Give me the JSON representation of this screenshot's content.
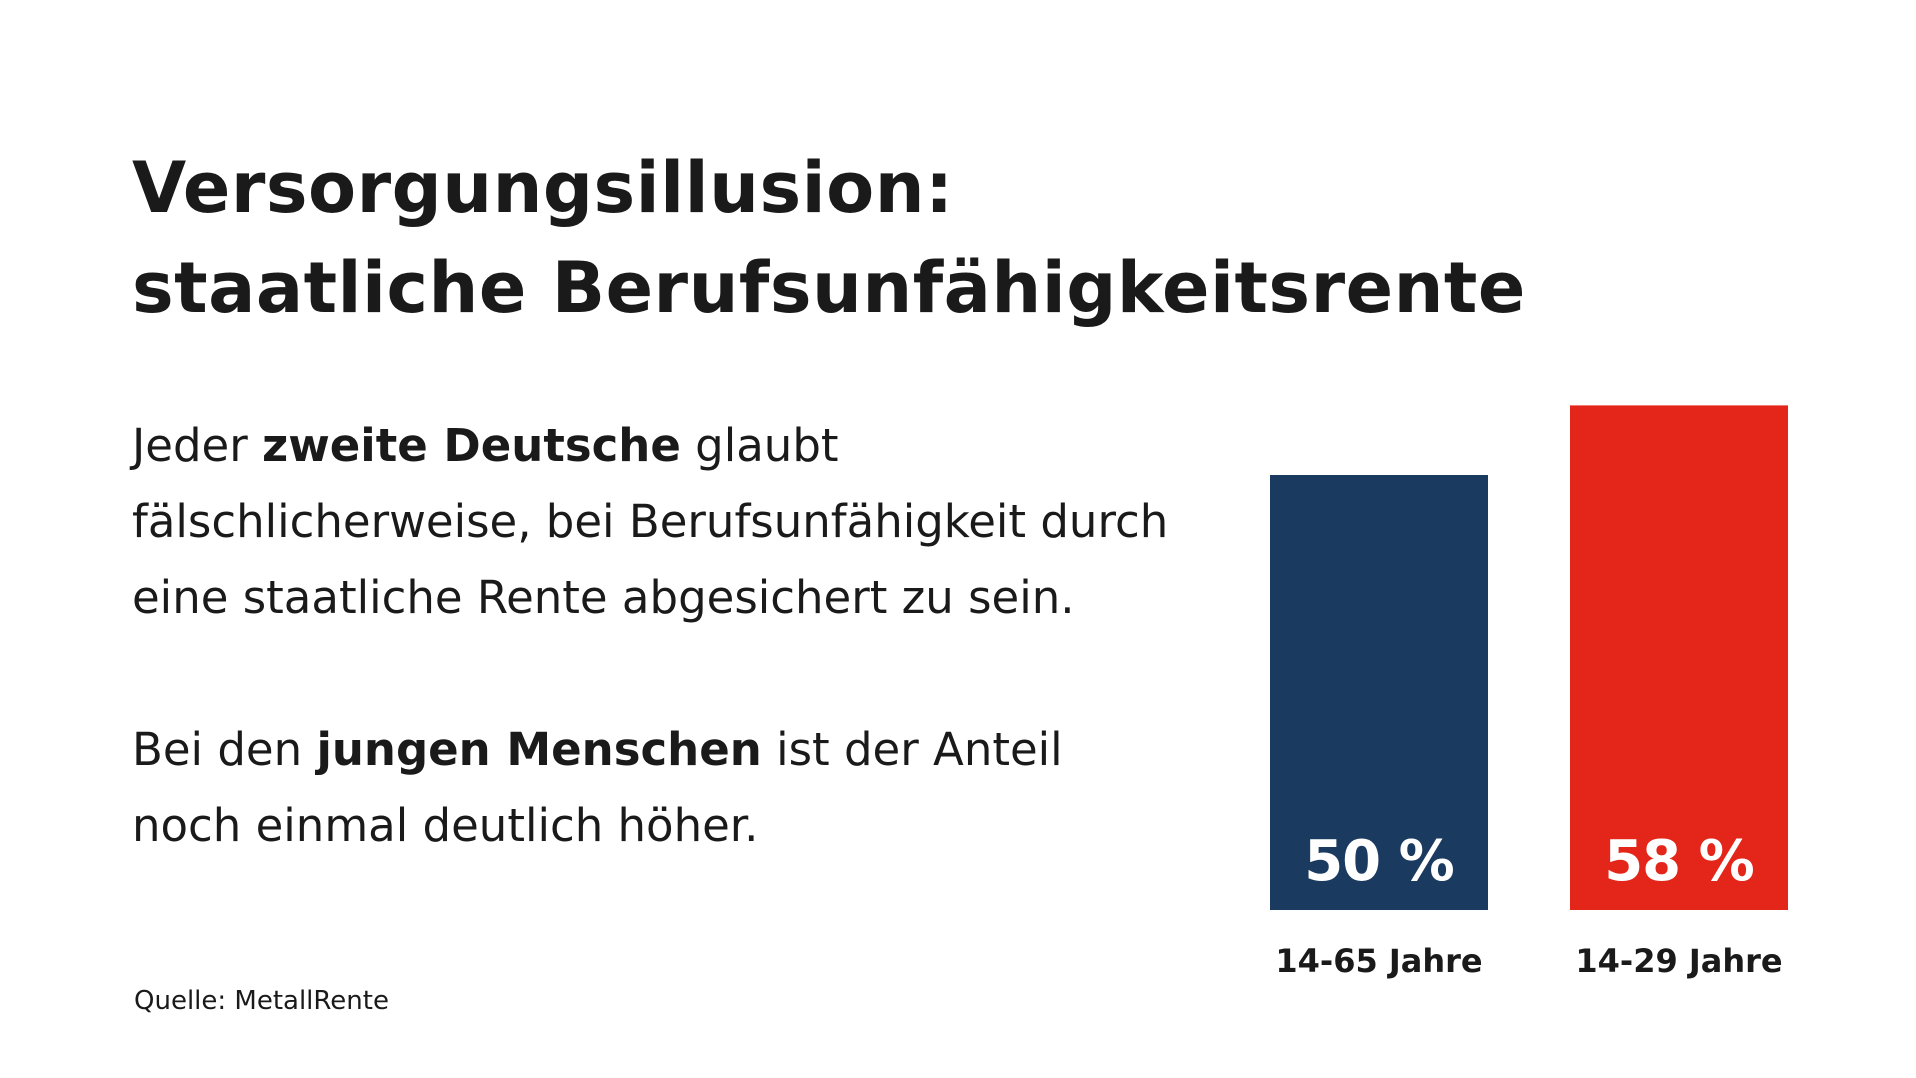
{
  "title_line1": "Versorgungsillusion:",
  "title_line2": "staatliche Berufsunfähigkeitsrente",
  "paragraph1": {
    "pre": "Jeder ",
    "bold": "zweite Deutsche",
    "post": " glaubt fälschlicherweise, bei Berufsunfähigkeit durch eine staatliche Rente abgesichert zu sein."
  },
  "paragraph2": {
    "pre": "Bei den ",
    "bold": "jungen Menschen",
    "post": " ist der Anteil noch einmal deutlich höher."
  },
  "source": "Quelle: MetallRente",
  "chart_data": {
    "type": "bar",
    "categories": [
      "14-65 Jahre",
      "14-29 Jahre"
    ],
    "values": [
      50,
      58
    ],
    "value_labels": [
      "50 %",
      "58 %"
    ],
    "colors": [
      "#1b3a5f",
      "#e32619"
    ],
    "title": "",
    "xlabel": "",
    "ylabel": "",
    "grid": false,
    "legend": "none"
  }
}
